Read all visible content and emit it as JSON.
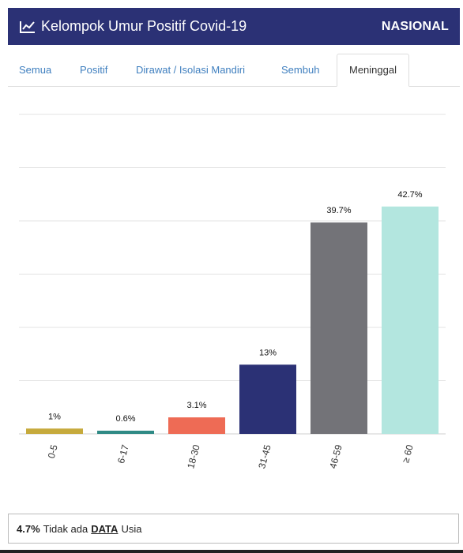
{
  "header": {
    "title": "Kelompok Umur Positif Covid-19",
    "scope": "NASIONAL",
    "icon": "line-chart-icon",
    "bg_color": "#2b3175"
  },
  "tabs": [
    {
      "label": "Semua",
      "active": false
    },
    {
      "label": "Positif",
      "active": false
    },
    {
      "label": "Dirawat / Isolasi Mandiri",
      "active": false
    },
    {
      "label": "Sembuh",
      "active": false
    },
    {
      "label": "Meninggal",
      "active": true
    }
  ],
  "chart_data": {
    "type": "bar",
    "categories": [
      "0-5",
      "6-17",
      "18-30",
      "31-45",
      "46-59",
      "≥ 60"
    ],
    "values": [
      1,
      0.6,
      3.1,
      13,
      39.7,
      42.7
    ],
    "value_labels": [
      "1%",
      "0.6%",
      "3.1%",
      "13%",
      "39.7%",
      "42.7%"
    ],
    "colors": [
      "#c6aa3c",
      "#2f8a85",
      "#ee6b55",
      "#2b3175",
      "#737378",
      "#b3e6df"
    ],
    "unit": "%",
    "ylim": [
      0,
      60
    ],
    "grid": true,
    "legend": "none"
  },
  "footer": {
    "percent": "4.7%",
    "text_before": "Tidak ada",
    "data_word": "DATA",
    "text_after": "Usia"
  }
}
